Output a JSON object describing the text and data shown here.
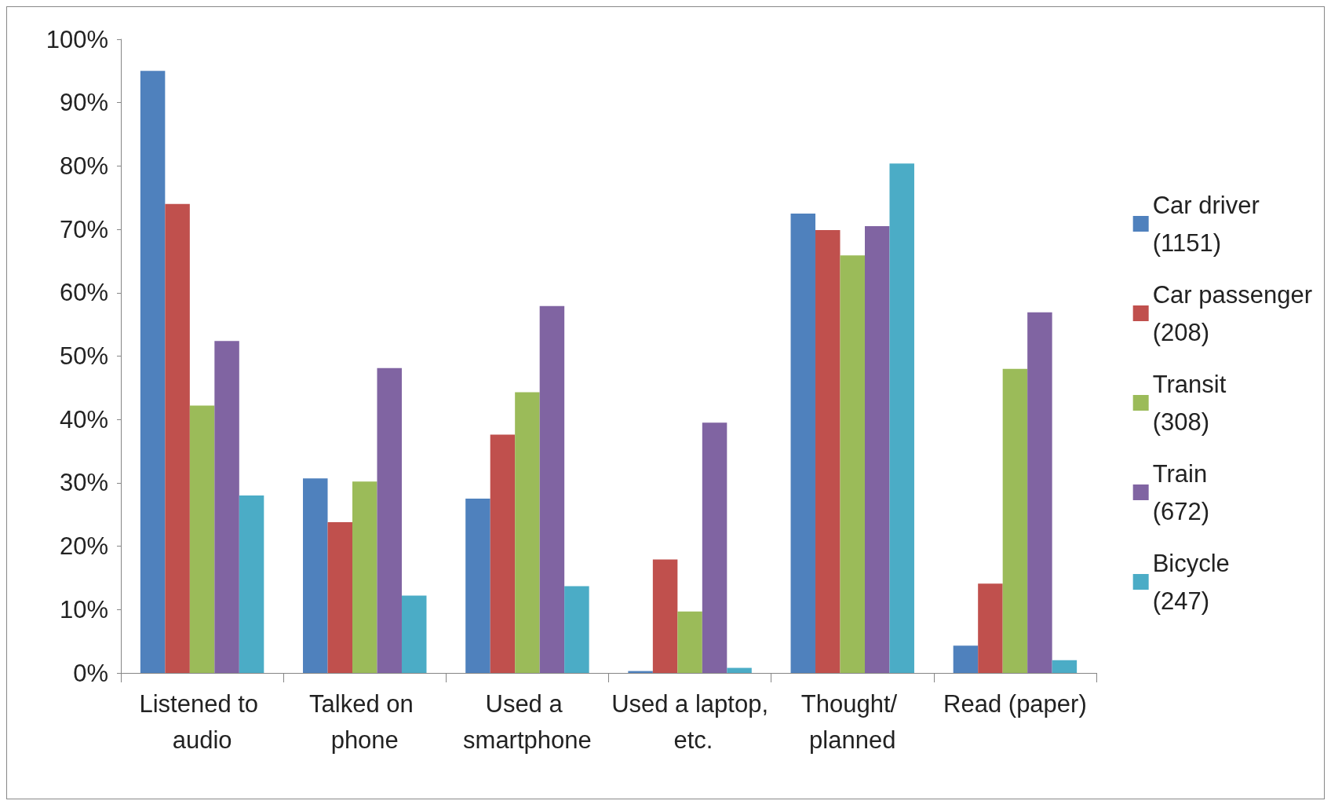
{
  "chart_data": {
    "type": "bar",
    "categories": [
      "Listened to audio",
      "Talked on phone",
      "Used a smartphone",
      "Used a laptop, etc.",
      "Thought/ planned",
      "Read (paper)"
    ],
    "series": [
      {
        "name": "Car driver (1151)",
        "color": "#4f81bd",
        "values": [
          95,
          30.7,
          27.5,
          0.3,
          72.5,
          4.3
        ]
      },
      {
        "name": "Car passenger (208)",
        "color": "#c0504d",
        "values": [
          74,
          23.8,
          37.6,
          17.9,
          69.9,
          14.1
        ]
      },
      {
        "name": "Transit (308)",
        "color": "#9bbb59",
        "values": [
          42.2,
          30.2,
          44.3,
          9.7,
          65.9,
          48
        ]
      },
      {
        "name": "Train (672)",
        "color": "#8064a2",
        "values": [
          52.4,
          48.1,
          57.9,
          39.5,
          70.5,
          56.9
        ]
      },
      {
        "name": "Bicycle (247)",
        "color": "#4bacc6",
        "values": [
          28,
          12.2,
          13.7,
          0.8,
          80.4,
          2
        ]
      }
    ],
    "ylim": [
      0,
      100
    ],
    "yticks": [
      {
        "value": 0,
        "label": "0%"
      },
      {
        "value": 10,
        "label": "10%"
      },
      {
        "value": 20,
        "label": "20%"
      },
      {
        "value": 30,
        "label": "30%"
      },
      {
        "value": 40,
        "label": "40%"
      },
      {
        "value": 50,
        "label": "50%"
      },
      {
        "value": 60,
        "label": "60%"
      },
      {
        "value": 70,
        "label": "70%"
      },
      {
        "value": 80,
        "label": "80%"
      },
      {
        "value": 90,
        "label": "90%"
      },
      {
        "value": 100,
        "label": "100%"
      }
    ],
    "grid": false,
    "legend": "right"
  }
}
